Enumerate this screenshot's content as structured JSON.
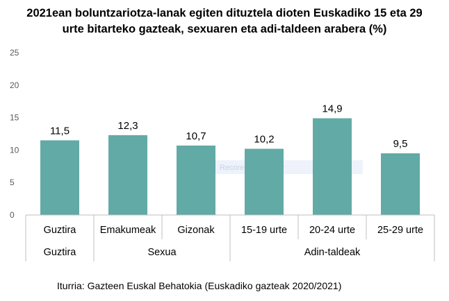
{
  "title_lines": [
    "2021ean boluntzariotza-lanak egiten dituztela dioten Euskadiko 15 eta 29",
    "urte bitarteko gazteak, sexuaren eta adi-taldeen arabera (%)"
  ],
  "source": "Iturria: Gazteen Euskal Behatokia (Euskadiko gazteak 2020/2021)",
  "legend_hint": "Recore rectangular",
  "colors": {
    "bar": "#62aaa6",
    "grid": "#d9d9d9",
    "axis": "#bfbfbf",
    "hint_bg": "#eef3fb",
    "hint_text": "#c9d3e0"
  },
  "chart_data": {
    "type": "bar",
    "categories": [
      "Guztira",
      "Emakumeak",
      "Gizonak",
      "15-19 urte",
      "20-24 urte",
      "25-29 urte"
    ],
    "values": [
      11.5,
      12.3,
      10.7,
      10.2,
      14.9,
      9.5
    ],
    "value_labels": [
      "11,5",
      "12,3",
      "10,7",
      "10,2",
      "14,9",
      "9,5"
    ],
    "groups": [
      {
        "label": "Guztira",
        "span": 1
      },
      {
        "label": "Sexua",
        "span": 2
      },
      {
        "label": "Adin-taldeak",
        "span": 3
      }
    ],
    "ylim": [
      0,
      25
    ],
    "yticks": [
      0,
      5,
      10,
      15,
      20,
      25
    ],
    "grid": false
  }
}
